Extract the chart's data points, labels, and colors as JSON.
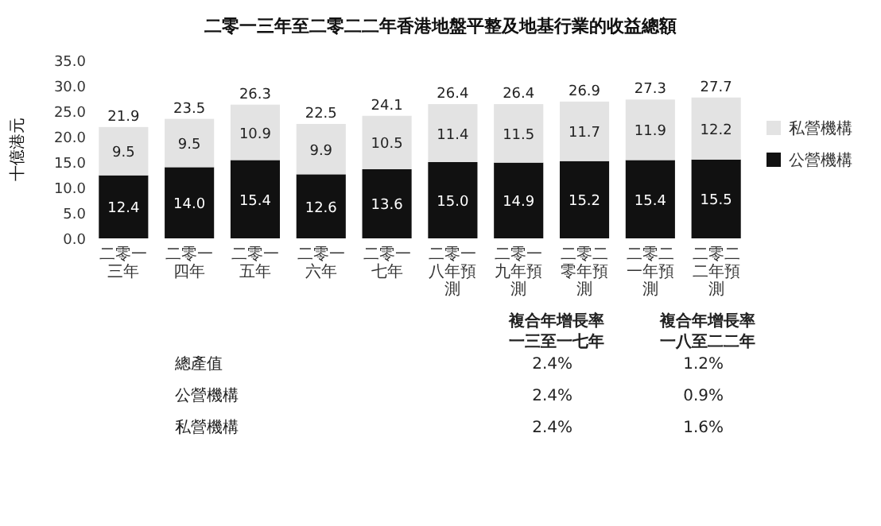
{
  "chart_data": {
    "type": "bar",
    "title": "二零一三年至二零二二年香港地盤平整及地基行業的收益總額",
    "ylabel": "十億港元",
    "stacked": true,
    "legend": "right",
    "grid": false,
    "categories": [
      "二零一三年",
      "二零一四年",
      "二零一五年",
      "二零一六年",
      "二零一七年",
      "二零一八年預測",
      "二零一九年預測",
      "二零二零年預測",
      "二零二一年預測",
      "二零二二年預測"
    ],
    "series": [
      {
        "name": "公營機構",
        "color": "#111111",
        "values": [
          12.4,
          14.0,
          15.4,
          12.6,
          13.6,
          15.0,
          14.9,
          15.2,
          15.4,
          15.5
        ],
        "value_labels": [
          "12.4",
          "14.0",
          "15.4",
          "12.6",
          "13.6",
          "15.0",
          "14.9",
          "15.2",
          "15.4",
          "15.5"
        ]
      },
      {
        "name": "私營機構",
        "color": "#e3e3e3",
        "values": [
          9.5,
          9.5,
          10.9,
          9.9,
          10.5,
          11.4,
          11.5,
          11.7,
          11.9,
          12.2
        ],
        "value_labels": [
          "9.5",
          "9.5",
          "10.9",
          "9.9",
          "10.5",
          "11.4",
          "11.5",
          "11.7",
          "11.9",
          "12.2"
        ]
      }
    ],
    "totals": [
      "21.9",
      "23.5",
      "26.3",
      "22.5",
      "24.1",
      "26.4",
      "26.4",
      "26.9",
      "27.3",
      "27.7"
    ],
    "ylim": [
      0,
      35
    ],
    "yticks": [
      {
        "value": 0,
        "label": "0.0"
      },
      {
        "value": 5,
        "label": "5.0"
      },
      {
        "value": 10,
        "label": "10.0"
      },
      {
        "value": 15,
        "label": "15.0"
      },
      {
        "value": 20,
        "label": "20.0"
      },
      {
        "value": 25,
        "label": "25.0"
      },
      {
        "value": 30,
        "label": "30.0"
      },
      {
        "value": 35,
        "label": "35.0"
      }
    ],
    "annotations": [
      "複合年增長率一三至一七年",
      "複合年增長率一八至二二年",
      "總產值",
      "2.4%",
      "1.2%",
      "公營機構",
      "2.4%",
      "0.9%",
      "私營機構",
      "2.4%",
      "1.6%"
    ]
  }
}
